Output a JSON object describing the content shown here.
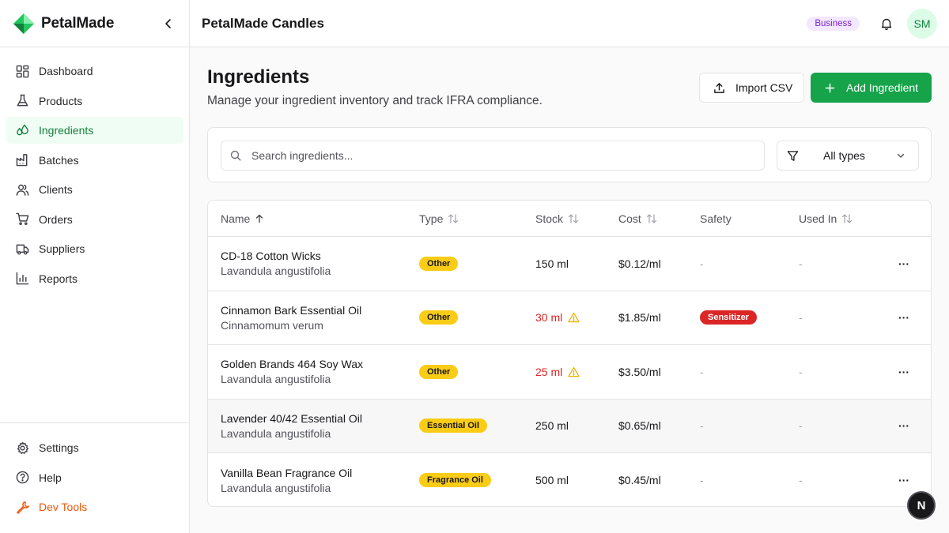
{
  "brand": {
    "name": "PetalMade",
    "logo_icon": "petal-logo-icon"
  },
  "sidebar": {
    "items": [
      {
        "label": "Dashboard",
        "icon": "dashboard-icon"
      },
      {
        "label": "Products",
        "icon": "flask-icon"
      },
      {
        "label": "Ingredients",
        "icon": "droplets-icon",
        "active": true
      },
      {
        "label": "Batches",
        "icon": "factory-icon"
      },
      {
        "label": "Clients",
        "icon": "users-icon"
      },
      {
        "label": "Orders",
        "icon": "cart-icon"
      },
      {
        "label": "Suppliers",
        "icon": "truck-icon"
      },
      {
        "label": "Reports",
        "icon": "bar-chart-icon"
      }
    ],
    "bottom": [
      {
        "label": "Settings",
        "icon": "gear-icon"
      },
      {
        "label": "Help",
        "icon": "help-icon"
      },
      {
        "label": "Dev Tools",
        "icon": "wrench-icon"
      }
    ]
  },
  "header": {
    "title": "PetalMade Candles",
    "plan": "Business",
    "avatar": "SM"
  },
  "page": {
    "title": "Ingredients",
    "subtitle": "Manage your ingredient inventory and track IFRA compliance.",
    "import_label": "Import CSV",
    "add_label": "Add Ingredient"
  },
  "search": {
    "placeholder": "Search ingredients..."
  },
  "filter": {
    "value": "All types"
  },
  "table": {
    "columns": [
      "Name",
      "Type",
      "Stock",
      "Cost",
      "Safety",
      "Used In"
    ],
    "rows": [
      {
        "name": "CD-18 Cotton Wicks",
        "latin": "Lavandula angustifolia",
        "type": "Other",
        "stock": "150 ml",
        "low": false,
        "cost": "$0.12/ml",
        "safety": "-",
        "used_in": "-"
      },
      {
        "name": "Cinnamon Bark Essential Oil",
        "latin": "Cinnamomum verum",
        "type": "Other",
        "stock": "30 ml",
        "low": true,
        "cost": "$1.85/ml",
        "safety": "Sensitizer",
        "used_in": "-"
      },
      {
        "name": "Golden Brands 464 Soy Wax",
        "latin": "Lavandula angustifolia",
        "type": "Other",
        "stock": "25 ml",
        "low": true,
        "cost": "$3.50/ml",
        "safety": "-",
        "used_in": "-"
      },
      {
        "name": "Lavender 40/42 Essential Oil",
        "latin": "Lavandula angustifolia",
        "type": "Essential Oil",
        "stock": "250 ml",
        "low": false,
        "cost": "$0.65/ml",
        "safety": "-",
        "used_in": "-"
      },
      {
        "name": "Vanilla Bean Fragrance Oil",
        "latin": "Lavandula angustifolia",
        "type": "Fragrance Oil",
        "stock": "500 ml",
        "low": false,
        "cost": "$0.45/ml",
        "safety": "-",
        "used_in": "-"
      }
    ],
    "row_action": "···"
  },
  "fab_label": "N",
  "colors": {
    "accent": "#16a34a",
    "type_pill": "#facc15",
    "danger": "#dc2626",
    "plan_badge": "#f3e8ff"
  }
}
